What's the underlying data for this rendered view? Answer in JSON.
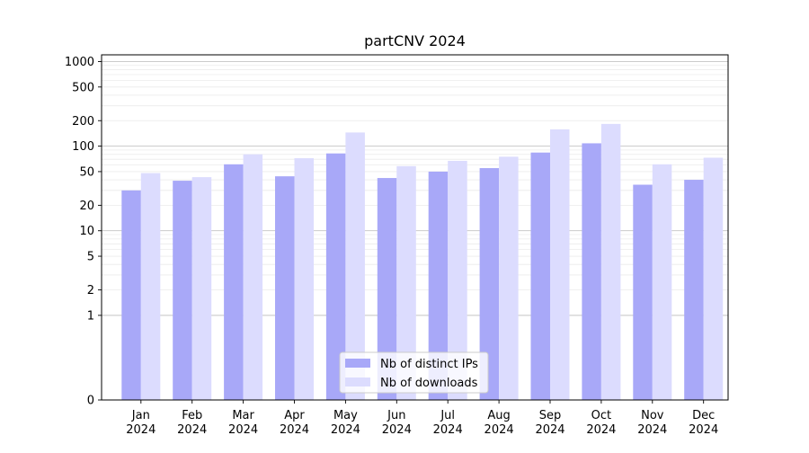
{
  "chart_data": {
    "type": "bar",
    "title": "partCNV 2024",
    "xlabel": "",
    "ylabel": "",
    "y_scale": "symlog",
    "ylim": [
      0,
      1200
    ],
    "y_ticks": [
      0,
      1,
      2,
      5,
      10,
      20,
      50,
      100,
      200,
      500,
      1000
    ],
    "y_tick_labels": [
      "0",
      "1",
      "2",
      "5",
      "10",
      "20",
      "50",
      "100",
      "200",
      "500",
      "1000"
    ],
    "grid": true,
    "legend_position": "bottom-center",
    "categories": [
      [
        "Jan",
        "2024"
      ],
      [
        "Feb",
        "2024"
      ],
      [
        "Mar",
        "2024"
      ],
      [
        "Apr",
        "2024"
      ],
      [
        "May",
        "2024"
      ],
      [
        "Jun",
        "2024"
      ],
      [
        "Jul",
        "2024"
      ],
      [
        "Aug",
        "2024"
      ],
      [
        "Sep",
        "2024"
      ],
      [
        "Oct",
        "2024"
      ],
      [
        "Nov",
        "2024"
      ],
      [
        "Dec",
        "2024"
      ]
    ],
    "series": [
      {
        "name": "Nb of distinct IPs",
        "color": "#a8a8f8",
        "values": [
          30,
          39,
          61,
          44,
          82,
          42,
          50,
          55,
          84,
          108,
          35,
          40
        ]
      },
      {
        "name": "Nb of downloads",
        "color": "#dcdcfe",
        "values": [
          48,
          43,
          80,
          72,
          145,
          58,
          67,
          75,
          158,
          183,
          61,
          73
        ]
      }
    ]
  }
}
